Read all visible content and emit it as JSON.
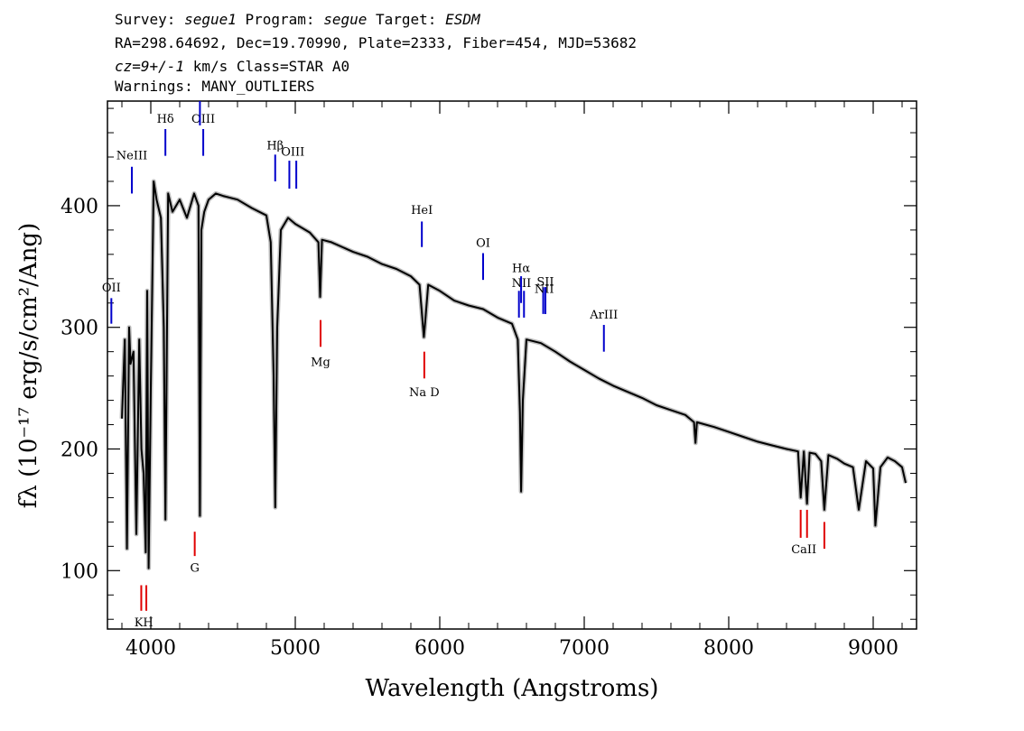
{
  "header": {
    "line1": {
      "survey_label": "Survey: ",
      "survey": "segue1",
      "program_label": " Program: ",
      "program": "segue",
      "target_label": " Target: ",
      "target": "ESDM"
    },
    "line2": "RA=298.64692, Dec=19.70990, Plate=2333, Fiber=454, MJD=53682",
    "line3": {
      "cz": "cz=9+/-1",
      "rest": " km/s Class=STAR A0"
    },
    "line4": "Warnings: MANY_OUTLIERS"
  },
  "chart_data": {
    "type": "line",
    "title": "",
    "xlabel": "Wavelength (Angstroms)",
    "ylabel": "fλ (10⁻¹⁷ erg/s/cm²/Ang)",
    "xlim": [
      3700,
      9300
    ],
    "ylim": [
      52,
      486
    ],
    "xticks": [
      4000,
      5000,
      6000,
      7000,
      8000,
      9000
    ],
    "yticks": [
      100,
      200,
      300,
      400
    ],
    "series": [
      {
        "color": "#000000",
        "x": [
          3800,
          3820,
          3835,
          3850,
          3860,
          3880,
          3890,
          3900,
          3920,
          3935,
          3950,
          3965,
          3970,
          3975,
          3985,
          4000,
          4020,
          4040,
          4070,
          4090,
          4101,
          4120,
          4150,
          4200,
          4250,
          4300,
          4330,
          4340,
          4350,
          4370,
          4400,
          4450,
          4500,
          4600,
          4700,
          4800,
          4830,
          4850,
          4861,
          4875,
          4900,
          4950,
          5000,
          5100,
          5160,
          5172,
          5185,
          5250,
          5400,
          5500,
          5600,
          5700,
          5800,
          5860,
          5890,
          5896,
          5920,
          6000,
          6100,
          6200,
          6300,
          6400,
          6500,
          6540,
          6555,
          6563,
          6575,
          6600,
          6700,
          6800,
          6900,
          7000,
          7100,
          7200,
          7300,
          7400,
          7500,
          7600,
          7700,
          7760,
          7770,
          7780,
          7900,
          8000,
          8100,
          8200,
          8300,
          8400,
          8480,
          8498,
          8520,
          8542,
          8560,
          8600,
          8640,
          8662,
          8690,
          8750,
          8800,
          8860,
          8900,
          8950,
          9000,
          9015,
          9050,
          9100,
          9150,
          9200,
          9225
        ],
        "values": [
          225,
          290,
          118,
          300,
          270,
          280,
          205,
          130,
          290,
          200,
          180,
          115,
          220,
          330,
          102,
          250,
          420,
          405,
          390,
          300,
          142,
          410,
          395,
          405,
          390,
          410,
          400,
          145,
          380,
          395,
          405,
          410,
          408,
          405,
          398,
          392,
          370,
          260,
          152,
          300,
          380,
          390,
          385,
          378,
          370,
          325,
          372,
          370,
          362,
          358,
          352,
          348,
          342,
          335,
          292,
          300,
          335,
          330,
          322,
          318,
          315,
          308,
          303,
          290,
          230,
          165,
          240,
          290,
          287,
          280,
          272,
          265,
          258,
          252,
          247,
          242,
          236,
          232,
          228,
          222,
          205,
          222,
          218,
          214,
          210,
          206,
          203,
          200,
          198,
          160,
          198,
          155,
          197,
          196,
          190,
          150,
          195,
          192,
          188,
          185,
          150,
          190,
          184,
          137,
          185,
          193,
          190,
          185,
          172
        ]
      }
    ],
    "line_markers": [
      {
        "label": "KH",
        "color": "red",
        "x": [
          3934,
          3969
        ],
        "y": [
          88,
          67
        ],
        "label_y": 58
      },
      {
        "label": "G",
        "color": "red",
        "x": [
          4304
        ],
        "y": [
          132,
          112
        ],
        "label_y": 103
      },
      {
        "label": "Mg",
        "color": "red",
        "x": [
          5175
        ],
        "y": [
          306,
          284
        ],
        "label_y": 272
      },
      {
        "label": "Na  D",
        "color": "red",
        "x": [
          5893
        ],
        "y": [
          280,
          258
        ],
        "label_y": 247
      },
      {
        "label": "CaII",
        "color": "red",
        "x": [
          8498,
          8542
        ],
        "y": [
          150,
          127
        ],
        "label_y": 118
      },
      {
        "label": "",
        "color": "red",
        "x": [
          8662
        ],
        "y": [
          140,
          118
        ]
      },
      {
        "label": "NeIII",
        "color": "blue",
        "x": [
          3869
        ],
        "y": [
          432,
          410
        ],
        "label_y": 442
      },
      {
        "label": "Hδ",
        "color": "blue",
        "x": [
          4101
        ],
        "y": [
          463,
          441
        ],
        "label_y": 472
      },
      {
        "label": "OIII",
        "color": "blue",
        "x": [
          4363
        ],
        "y": [
          463,
          441
        ],
        "label_y": 472
      },
      {
        "label": "",
        "color": "blue",
        "x": [
          4340
        ],
        "y": [
          486,
          466
        ]
      },
      {
        "label": "Hβ",
        "color": "blue",
        "x": [
          4861
        ],
        "y": [
          442,
          420
        ],
        "label_y": 450
      },
      {
        "label": "OIII",
        "color": "blue",
        "x": [
          4959,
          5007
        ],
        "y": [
          437,
          414
        ],
        "label_y": 445
      },
      {
        "label": "HeI",
        "color": "blue",
        "x": [
          5876
        ],
        "y": [
          387,
          366
        ],
        "label_y": 397
      },
      {
        "label": "OI",
        "color": "blue",
        "x": [
          6300
        ],
        "y": [
          361,
          339
        ],
        "label_y": 370
      },
      {
        "label": "NII",
        "color": "blue",
        "x": [
          6548,
          6583
        ],
        "y": [
          330,
          308
        ],
        "label_y": 337
      },
      {
        "label": "Hα",
        "color": "blue",
        "x": [
          6563
        ],
        "y": [
          342,
          320
        ],
        "label_y": 349
      },
      {
        "label": "NII",
        "color": "blue",
        "x": [
          6716,
          6731
        ],
        "y": [
          333,
          311
        ],
        "label_y": 332
      },
      {
        "label": "SII",
        "color": "blue",
        "x": [
          6731
        ],
        "y": [
          333,
          311
        ],
        "label_y": 338
      },
      {
        "label": "ArIII",
        "color": "blue",
        "x": [
          7136
        ],
        "y": [
          302,
          280
        ],
        "label_y": 311
      },
      {
        "label": "OII",
        "color": "blue",
        "x": [
          3727
        ],
        "y": [
          324,
          303
        ],
        "label_y": 333
      }
    ]
  }
}
